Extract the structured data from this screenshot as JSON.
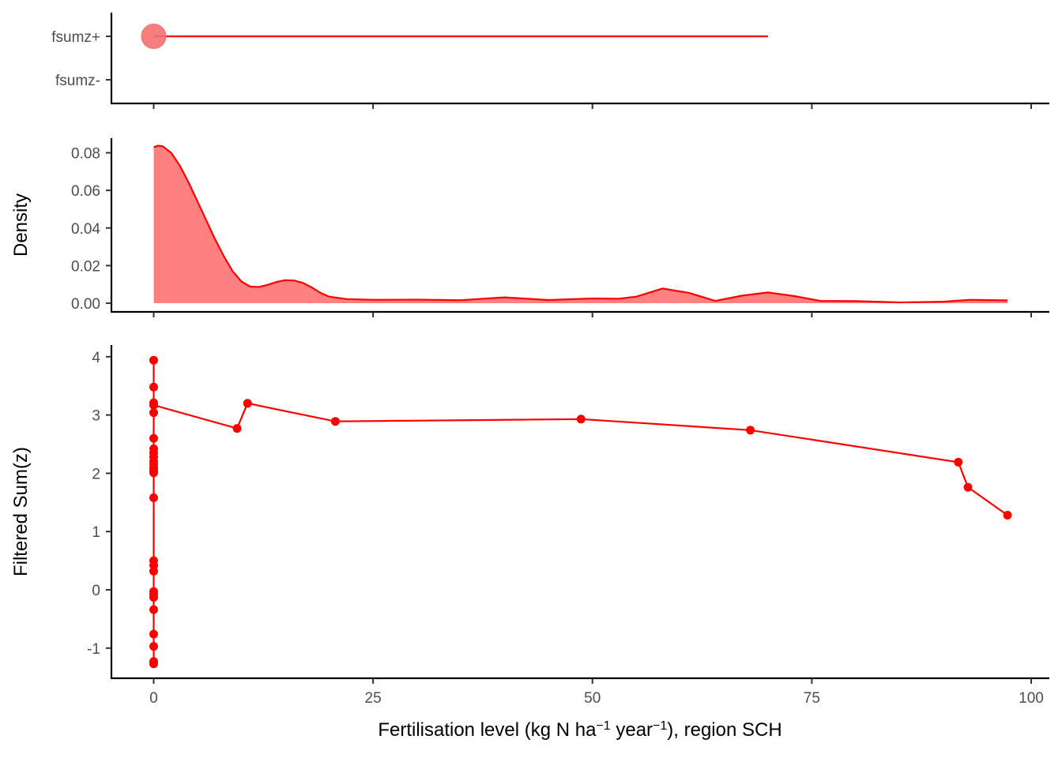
{
  "colors": {
    "series": "#ff0000",
    "area_fill": "#ff8080",
    "point_fill": "#f47070",
    "axis": "#000000",
    "tick_text": "#4d4d4d"
  },
  "chart_data": [
    {
      "type": "scatter",
      "panel": "top",
      "title": "",
      "xlabel": "",
      "ylabel": "",
      "categories": [
        "fsumz+",
        "fsumz-"
      ],
      "xlim": [
        -5,
        101
      ],
      "point": {
        "category": "fsumz+",
        "x": 0
      },
      "segment": {
        "category": "fsumz+",
        "x_start": 0,
        "x_end": 70
      },
      "grid": false
    },
    {
      "type": "area",
      "panel": "middle",
      "title": "",
      "xlabel": "",
      "ylabel": "Density",
      "ylim": [
        -0.0025,
        0.087
      ],
      "xlim": [
        -5,
        101
      ],
      "yticks": [
        "0.00",
        "0.02",
        "0.04",
        "0.06",
        "0.08"
      ],
      "ytick_values": [
        0,
        0.02,
        0.04,
        0.06,
        0.08
      ],
      "x": [
        0,
        0.5,
        1,
        2,
        3,
        4,
        5,
        6,
        7,
        8,
        9,
        10,
        11,
        12,
        13,
        14,
        15,
        16,
        17,
        18,
        19,
        20,
        22,
        25,
        30,
        35,
        40,
        45,
        50,
        53,
        55,
        58,
        61,
        64,
        67,
        70,
        73,
        76,
        80,
        85,
        90,
        93,
        97.3
      ],
      "y": [
        0.083,
        0.0838,
        0.0835,
        0.08,
        0.073,
        0.064,
        0.054,
        0.044,
        0.034,
        0.025,
        0.017,
        0.0115,
        0.0088,
        0.0086,
        0.0098,
        0.0113,
        0.0122,
        0.0121,
        0.0108,
        0.0084,
        0.0055,
        0.0035,
        0.0022,
        0.0018,
        0.0019,
        0.0016,
        0.0031,
        0.0017,
        0.0025,
        0.0024,
        0.0035,
        0.0078,
        0.0055,
        0.0012,
        0.004,
        0.0057,
        0.0038,
        0.0012,
        0.0011,
        0.0004,
        0.0008,
        0.0018,
        0.0015
      ],
      "grid": false
    },
    {
      "type": "line",
      "panel": "bottom",
      "title": "",
      "xlabel": "Fertilisation level (kg N ha",
      "xlabel_sup1": "−1",
      "xlabel_mid": " year",
      "xlabel_sup2": "−1",
      "xlabel_end": "), region SCH",
      "ylabel": "Filtered Sum(z)",
      "xlim": [
        -5,
        101
      ],
      "ylim": [
        -1.5,
        4.2
      ],
      "xticks": [
        "0",
        "25",
        "50",
        "75",
        "100"
      ],
      "xtick_values": [
        0,
        25,
        50,
        75,
        100
      ],
      "yticks": [
        "-1",
        "0",
        "1",
        "2",
        "3",
        "4"
      ],
      "ytick_values": [
        -1,
        0,
        1,
        2,
        3,
        4
      ],
      "x": [
        0,
        0,
        0,
        0,
        0,
        0,
        0,
        0,
        0,
        0,
        0,
        0,
        0,
        0,
        0,
        0,
        0,
        0,
        0,
        0,
        0,
        0,
        0,
        0,
        0,
        0,
        9.5,
        10.7,
        20.7,
        48.7,
        68,
        91.7,
        92.8,
        97.3
      ],
      "y": [
        -1.27,
        -1.23,
        -0.97,
        -0.76,
        -0.34,
        -0.13,
        -0.08,
        -0.03,
        0.32,
        0.42,
        0.5,
        1.58,
        2.01,
        2.04,
        2.09,
        2.15,
        2.2,
        2.28,
        2.35,
        2.42,
        2.6,
        3.04,
        3.17,
        3.21,
        3.48,
        3.94,
        2.77,
        3.2,
        2.89,
        2.93,
        2.74,
        2.19,
        1.76,
        1.28
      ],
      "line_order": "vertical at x=0 from -1.27 to 3.94, then 3.17 connects to x>0 points",
      "grid": false
    }
  ]
}
